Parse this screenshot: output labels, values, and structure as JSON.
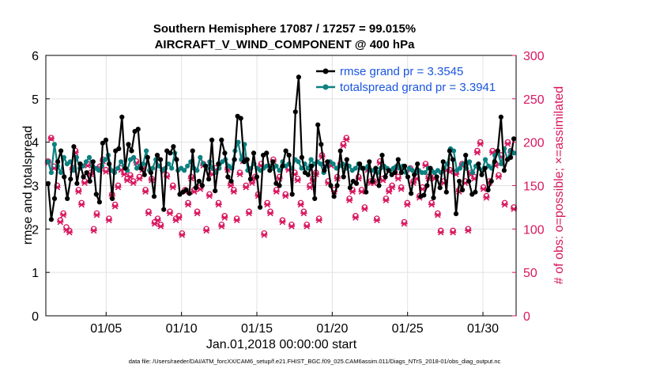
{
  "colors": {
    "rmse": "#000000",
    "spread": "#0d8080",
    "obs": "#d8175f",
    "legend_text": "#1a55e0",
    "grid": "#e2e2e2"
  },
  "chart_data": {
    "type": "line",
    "title": "Southern Hemisphere 17087 / 17257 = 99.015%",
    "subtitle": "AIRCRAFT_V_WIND_COMPONENT @ 400 hPa",
    "xlabel": "Jan.01,2018 00:00:00 start",
    "ylabel": "rmse and totalspread",
    "y2label": "# of obs: o=possible; ×=assimilated",
    "xlim": [
      1,
      32.2
    ],
    "ylim": [
      0,
      6
    ],
    "y2lim": [
      0,
      300
    ],
    "xticks": [
      5,
      10,
      15,
      20,
      25,
      30
    ],
    "xticklabels": [
      "01/05",
      "01/10",
      "01/15",
      "01/20",
      "01/25",
      "01/30"
    ],
    "yticks": [
      0,
      1,
      2,
      3,
      4,
      5,
      6
    ],
    "yticklabels": [
      "0",
      "1",
      "2",
      "3",
      "4",
      "5",
      "6"
    ],
    "y2ticks": [
      0,
      50,
      100,
      150,
      200,
      250,
      300
    ],
    "y2ticklabels": [
      "0",
      "50",
      "100",
      "150",
      "200",
      "250",
      "300"
    ],
    "footnote": "data file: /Users/raeder/DAI/ATM_forcXX/CAM6_setup/f.e21.FHIST_BGC.f09_025.CAM6assim.011/Diags_NTrS_2018-01/obs_diag_output.nc",
    "series": [
      {
        "name": "rmse grand pr = 3.3545",
        "axis": "left",
        "values": [
          3.05,
          2.22,
          2.7,
          3.55,
          3.8,
          3.2,
          2.7,
          3.15,
          3.9,
          3.05,
          3.5,
          3.2,
          3.3,
          3.1,
          3.55,
          2.8,
          2.62,
          3.98,
          4.05,
          3.5,
          2.7,
          3.8,
          3.85,
          4.58,
          3.4,
          3.95,
          3.8,
          4.25,
          4.3,
          3.4,
          3.25,
          3.65,
          3.3,
          2.75,
          3.7,
          3.6,
          2.45,
          3.8,
          3.75,
          3.9,
          3.6,
          2.8,
          2.85,
          2.9,
          2.82,
          3.8,
          2.95,
          3.1,
          3.0,
          3.45,
          3.15,
          4.05,
          2.88,
          3.5,
          4.05,
          3.75,
          3.2,
          3.1,
          3.6,
          4.6,
          4.55,
          3.55,
          3.6,
          3.15,
          3.75,
          3.2,
          2.5,
          3.7,
          3.75,
          3.35,
          3.55,
          3.05,
          3.0,
          3.45,
          3.8,
          3.7,
          2.8,
          4.7,
          5.5,
          3.65,
          3.3,
          3.25,
          3.45,
          2.7,
          4.4,
          3.95,
          3.35,
          3.55,
          3.0,
          2.75,
          3.0,
          3.8,
          3.2,
          3.6,
          2.95,
          3.1,
          3.05,
          3.5,
          3.4,
          2.85,
          3.55,
          3.1,
          3.4,
          3.0,
          3.7,
          3.2,
          3.35,
          3.25,
          3.3,
          3.6,
          3.3,
          3.45,
          3.2,
          2.82,
          3.25,
          3.5,
          2.75,
          2.78,
          3.0,
          3.4,
          2.72,
          3.2,
          2.95,
          3.55,
          2.85,
          3.8,
          3.6,
          2.35,
          3.1,
          2.9,
          3.7,
          3.1,
          2.8,
          2.85,
          3.5,
          3.25,
          3.4,
          2.9,
          3.1,
          3.55,
          3.8,
          4.58,
          3.35,
          3.6,
          3.65,
          4.08
        ],
        "style": "line-marker"
      },
      {
        "name": "totalspread grand pr = 3.3941",
        "axis": "left",
        "values": [
          3.55,
          3.3,
          3.95,
          3.45,
          3.3,
          3.65,
          3.5,
          3.55,
          3.35,
          3.65,
          3.4,
          3.45,
          3.55,
          3.65,
          3.45,
          3.4,
          3.35,
          3.45,
          3.6,
          3.7,
          3.35,
          3.3,
          3.4,
          3.55,
          3.45,
          3.35,
          3.6,
          3.65,
          3.4,
          3.45,
          3.5,
          3.8,
          3.35,
          3.4,
          3.6,
          3.45,
          3.35,
          3.4,
          3.5,
          3.4,
          3.75,
          3.35,
          3.4,
          3.35,
          3.45,
          3.55,
          3.4,
          3.35,
          3.65,
          3.5,
          3.4,
          3.55,
          3.4,
          3.3,
          3.4,
          3.55,
          3.6,
          3.45,
          3.4,
          3.8,
          4.0,
          3.6,
          3.95,
          3.35,
          3.4,
          3.5,
          3.4,
          3.35,
          3.4,
          3.45,
          3.45,
          3.4,
          3.45,
          3.35,
          3.55,
          3.45,
          3.5,
          3.4,
          3.6,
          3.55,
          3.4,
          3.5,
          3.4,
          3.6,
          3.5,
          3.55,
          3.5,
          3.3,
          3.45,
          3.55,
          3.5,
          3.4,
          3.45,
          3.5,
          3.4,
          3.45,
          3.35,
          3.4,
          3.5,
          3.4,
          3.4,
          3.45,
          3.35,
          3.35,
          3.3,
          3.4,
          3.45,
          3.4,
          3.35,
          3.4,
          3.45,
          3.4,
          3.45,
          3.3,
          3.4,
          3.35,
          3.3,
          3.35,
          3.3,
          3.3,
          3.4,
          3.35,
          3.3,
          3.35,
          3.3,
          3.4,
          3.5,
          3.85,
          3.8,
          3.35,
          3.4,
          3.5,
          3.4,
          3.55,
          3.3,
          3.45,
          3.4,
          3.35,
          3.6,
          3.45,
          3.4,
          3.7,
          3.75,
          3.5,
          3.85,
          3.6,
          3.8,
          3.75
        ],
        "style": "line-marker"
      },
      {
        "name": "obs possible",
        "axis": "right",
        "marker": "o",
        "values": [
          178,
          205,
          172,
          150,
          110,
          118,
          102,
          98,
          170,
          190,
          145,
          130,
          155,
          175,
          165,
          100,
          118,
          172,
          180,
          168,
          112,
          140,
          128,
          150,
          170,
          165,
          158,
          162,
          155,
          178,
          160,
          170,
          145,
          120,
          158,
          108,
          112,
          105,
          168,
          162,
          120,
          150,
          112,
          115,
          95,
          145,
          130,
          160,
          145,
          120,
          148,
          175,
          100,
          140,
          165,
          170,
          130,
          105,
          115,
          170,
          152,
          145,
          112,
          165,
          180,
          150,
          120,
          155,
          160,
          140,
          175,
          95,
          130,
          120,
          180,
          145,
          160,
          110,
          140,
          170,
          105,
          165,
          158,
          130,
          120,
          105,
          150,
          158,
          165,
          112,
          185,
          175,
          155,
          175,
          145,
          160,
          175,
          198,
          205,
          135,
          145,
          115,
          160,
          145,
          125,
          170,
          155,
          155,
          112,
          178,
          158,
          135,
          145,
          150,
          170,
          160,
          148,
          108,
          130,
          170,
          155,
          160,
          138,
          148,
          175,
          160,
          130,
          160,
          118,
          98,
          155,
          170,
          168,
          98,
          165,
          145,
          175,
          155,
          100,
          165,
          160,
          190,
          200,
          148,
          138,
          155,
          190,
          175,
          162,
          185,
          130,
          200,
          190,
          125
        ]
      },
      {
        "name": "obs assimilated",
        "axis": "right",
        "marker": "x",
        "values": [
          176,
          204,
          170,
          148,
          108,
          116,
          99,
          96,
          168,
          188,
          143,
          128,
          153,
          173,
          163,
          98,
          116,
          170,
          178,
          166,
          110,
          138,
          126,
          148,
          168,
          163,
          156,
          160,
          153,
          176,
          158,
          168,
          143,
          118,
          156,
          106,
          110,
          103,
          166,
          160,
          118,
          148,
          110,
          113,
          93,
          143,
          128,
          158,
          143,
          118,
          146,
          173,
          98,
          138,
          163,
          168,
          128,
          103,
          113,
          168,
          150,
          143,
          110,
          163,
          178,
          148,
          118,
          153,
          158,
          138,
          173,
          93,
          128,
          118,
          178,
          143,
          158,
          108,
          138,
          168,
          103,
          163,
          156,
          128,
          118,
          103,
          148,
          156,
          163,
          110,
          183,
          173,
          153,
          173,
          143,
          158,
          173,
          196,
          203,
          133,
          143,
          113,
          158,
          143,
          123,
          168,
          153,
          153,
          110,
          176,
          156,
          133,
          143,
          148,
          168,
          158,
          146,
          106,
          128,
          168,
          153,
          158,
          136,
          146,
          173,
          158,
          128,
          158,
          116,
          96,
          153,
          168,
          166,
          96,
          163,
          143,
          173,
          153,
          98,
          163,
          158,
          188,
          198,
          146,
          136,
          153,
          188,
          173,
          160,
          183,
          128,
          198,
          188,
          123
        ]
      }
    ]
  }
}
